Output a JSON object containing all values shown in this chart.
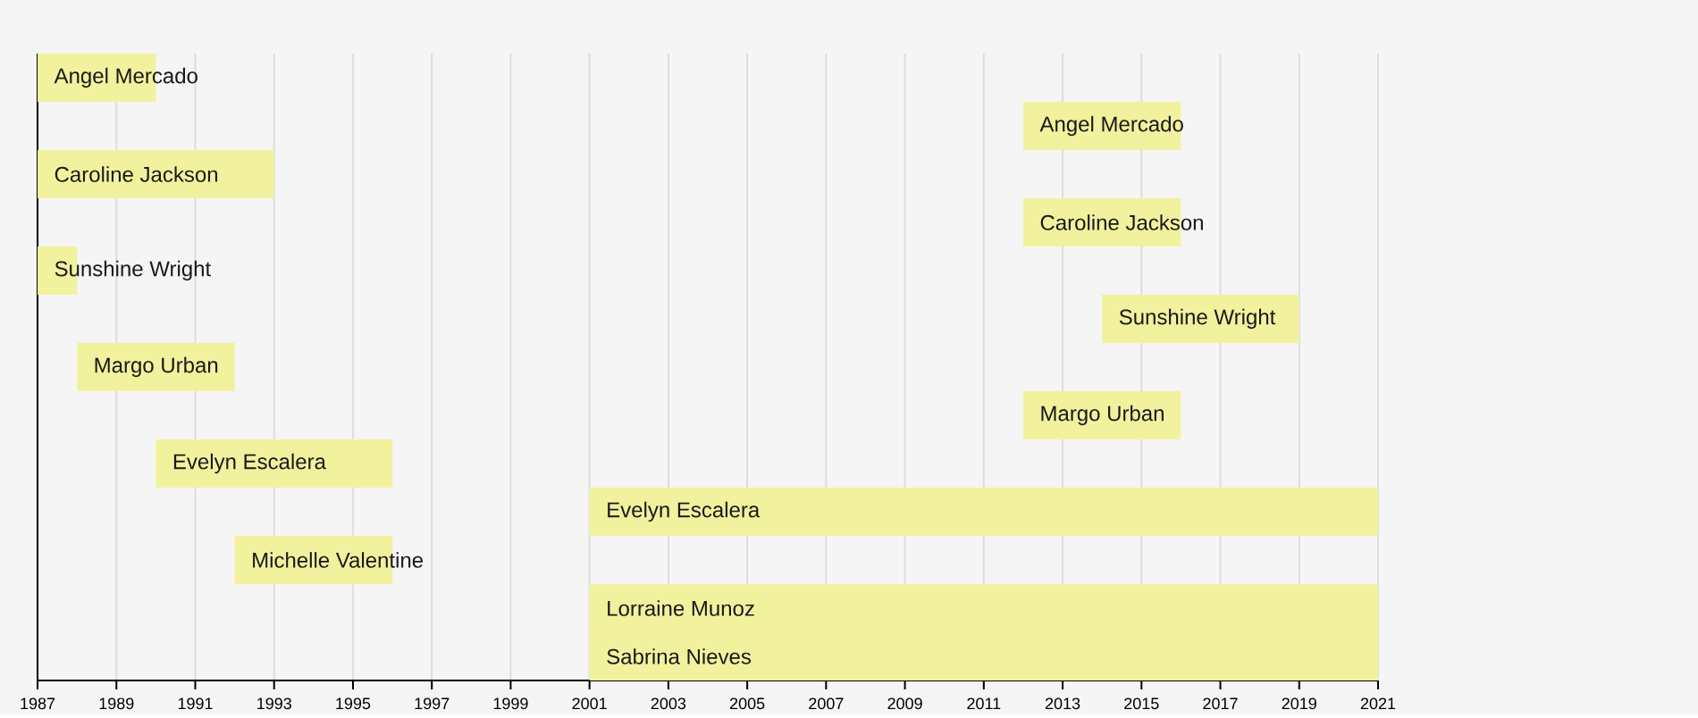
{
  "chart_data": {
    "type": "bar",
    "orientation": "horizontal",
    "categories": [
      "Angel Mercado",
      "Angel Mercado",
      "Caroline Jackson",
      "Caroline Jackson",
      "Sunshine Wright",
      "Sunshine Wright",
      "Margo Urban",
      "Margo Urban",
      "Evelyn Escalera",
      "Evelyn Escalera",
      "Michelle Valentine",
      "Lorraine Munoz",
      "Sabrina Nieves"
    ],
    "base": [
      1987,
      2012,
      1987,
      2012,
      1987,
      2014,
      1988,
      2012,
      1990,
      2001,
      1992,
      2001,
      2001
    ],
    "values": [
      3,
      4,
      6,
      4,
      1,
      5,
      4,
      4,
      6,
      20,
      4,
      20,
      20
    ],
    "color": "#f2f29e",
    "xlim": [
      1987,
      2021
    ],
    "xticks": [
      1987,
      1989,
      1991,
      1993,
      1995,
      1997,
      1999,
      2001,
      2003,
      2005,
      2007,
      2009,
      2011,
      2013,
      2015,
      2017,
      2019,
      2021
    ],
    "grid": "x"
  }
}
